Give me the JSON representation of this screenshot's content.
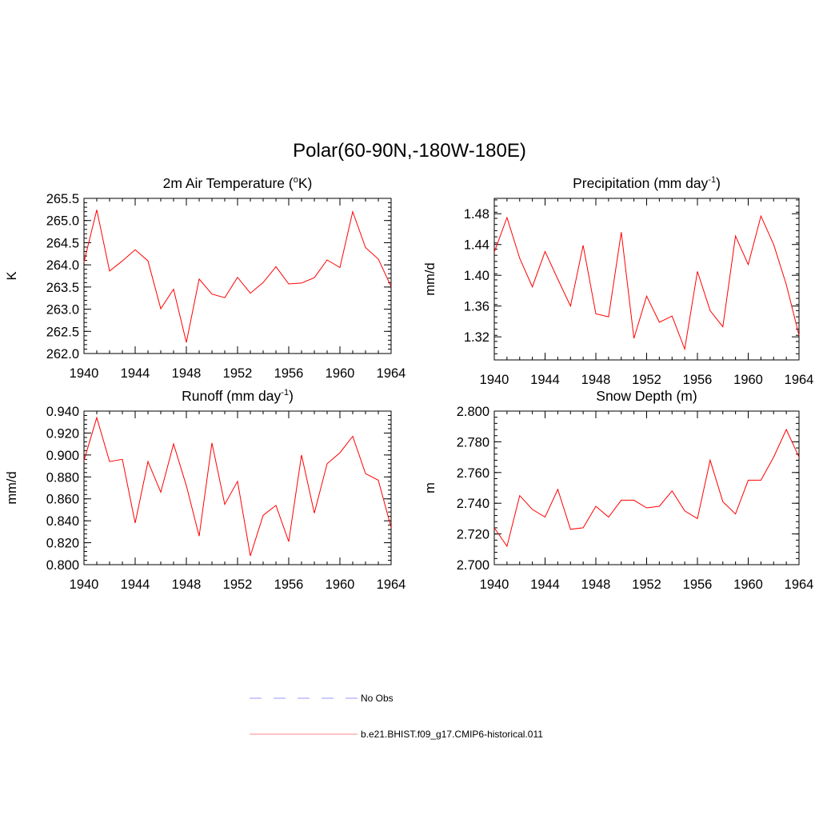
{
  "figure": {
    "title": "Polar(60-90N,-180W-180E)"
  },
  "legend": [
    {
      "label": "No Obs",
      "color": "#9999ff",
      "style": "dashed"
    },
    {
      "label": "b.e21.BHIST.f09_g17.CMIP6-historical.011",
      "color": "#ff8888",
      "style": "solid"
    }
  ],
  "chart_data": [
    {
      "type": "line",
      "title": "2m Air Temperature (",
      "title_sup": "o",
      "title_suffix": "K)",
      "ylabel": "K",
      "xlim": [
        1940,
        1964
      ],
      "ylim": [
        262.0,
        265.5
      ],
      "x_ticks": [
        "1940",
        "1944",
        "1948",
        "1952",
        "1956",
        "1960",
        "1964"
      ],
      "y_ticks": [
        "262.0",
        "262.5",
        "263.0",
        "263.5",
        "264.0",
        "264.5",
        "265.0",
        "265.5"
      ],
      "color": "#ff0000",
      "x": [
        1940,
        1941,
        1942,
        1943,
        1944,
        1945,
        1946,
        1947,
        1948,
        1949,
        1950,
        1951,
        1952,
        1953,
        1954,
        1955,
        1956,
        1957,
        1958,
        1959,
        1960,
        1961,
        1962,
        1963,
        1964
      ],
      "values": [
        264.06,
        265.24,
        263.86,
        264.09,
        264.34,
        264.09,
        263.01,
        263.45,
        262.25,
        263.68,
        263.34,
        263.26,
        263.72,
        263.36,
        263.6,
        263.96,
        263.57,
        263.59,
        263.71,
        264.11,
        263.94,
        265.2,
        264.39,
        264.13,
        263.51
      ]
    },
    {
      "type": "line",
      "title": "Precipitation (mm day",
      "title_sup": "-1",
      "title_suffix": ")",
      "ylabel": "mm/d",
      "xlim": [
        1940,
        1964
      ],
      "ylim": [
        1.29,
        1.5
      ],
      "x_ticks": [
        "1940",
        "1944",
        "1948",
        "1952",
        "1956",
        "1960",
        "1964"
      ],
      "y_ticks": [
        "1.32",
        "1.36",
        "1.40",
        "1.44",
        "1.48"
      ],
      "color": "#ff0000",
      "x": [
        1940,
        1941,
        1942,
        1943,
        1944,
        1945,
        1946,
        1947,
        1948,
        1949,
        1950,
        1951,
        1952,
        1953,
        1954,
        1955,
        1956,
        1957,
        1958,
        1959,
        1960,
        1961,
        1962,
        1963,
        1964
      ],
      "values": [
        1.43,
        1.475,
        1.422,
        1.385,
        1.431,
        1.395,
        1.36,
        1.439,
        1.35,
        1.346,
        1.456,
        1.318,
        1.373,
        1.339,
        1.347,
        1.304,
        1.405,
        1.354,
        1.333,
        1.451,
        1.414,
        1.477,
        1.44,
        1.388,
        1.322
      ]
    },
    {
      "type": "line",
      "title": "Runoff (mm day",
      "title_sup": "-1",
      "title_suffix": ")",
      "ylabel": "mm/d",
      "xlim": [
        1940,
        1964
      ],
      "ylim": [
        0.8,
        0.94
      ],
      "x_ticks": [
        "1940",
        "1944",
        "1948",
        "1952",
        "1956",
        "1960",
        "1964"
      ],
      "y_ticks": [
        "0.800",
        "0.820",
        "0.840",
        "0.860",
        "0.880",
        "0.900",
        "0.920",
        "0.940"
      ],
      "color": "#ff0000",
      "x": [
        1940,
        1941,
        1942,
        1943,
        1944,
        1945,
        1946,
        1947,
        1948,
        1949,
        1950,
        1951,
        1952,
        1953,
        1954,
        1955,
        1956,
        1957,
        1958,
        1959,
        1960,
        1961,
        1962,
        1963,
        1964
      ],
      "values": [
        0.895,
        0.934,
        0.894,
        0.896,
        0.838,
        0.894,
        0.866,
        0.91,
        0.872,
        0.826,
        0.911,
        0.855,
        0.876,
        0.808,
        0.845,
        0.854,
        0.821,
        0.9,
        0.847,
        0.892,
        0.902,
        0.917,
        0.883,
        0.877,
        0.834
      ]
    },
    {
      "type": "line",
      "title": "Snow Depth (m)",
      "title_sup": "",
      "title_suffix": "",
      "ylabel": "m",
      "xlim": [
        1940,
        1964
      ],
      "ylim": [
        2.7,
        2.8
      ],
      "x_ticks": [
        "1940",
        "1944",
        "1948",
        "1952",
        "1956",
        "1960",
        "1964"
      ],
      "y_ticks": [
        "2.700",
        "2.720",
        "2.740",
        "2.760",
        "2.780",
        "2.800"
      ],
      "color": "#ff0000",
      "x": [
        1940,
        1941,
        1942,
        1943,
        1944,
        1945,
        1946,
        1947,
        1948,
        1949,
        1950,
        1951,
        1952,
        1953,
        1954,
        1955,
        1956,
        1957,
        1958,
        1959,
        1960,
        1961,
        1962,
        1963,
        1964
      ],
      "values": [
        2.724,
        2.712,
        2.745,
        2.736,
        2.731,
        2.749,
        2.723,
        2.724,
        2.738,
        2.731,
        2.742,
        2.742,
        2.737,
        2.738,
        2.748,
        2.735,
        2.73,
        2.768,
        2.741,
        2.733,
        2.755,
        2.755,
        2.77,
        2.788,
        2.77
      ]
    }
  ]
}
